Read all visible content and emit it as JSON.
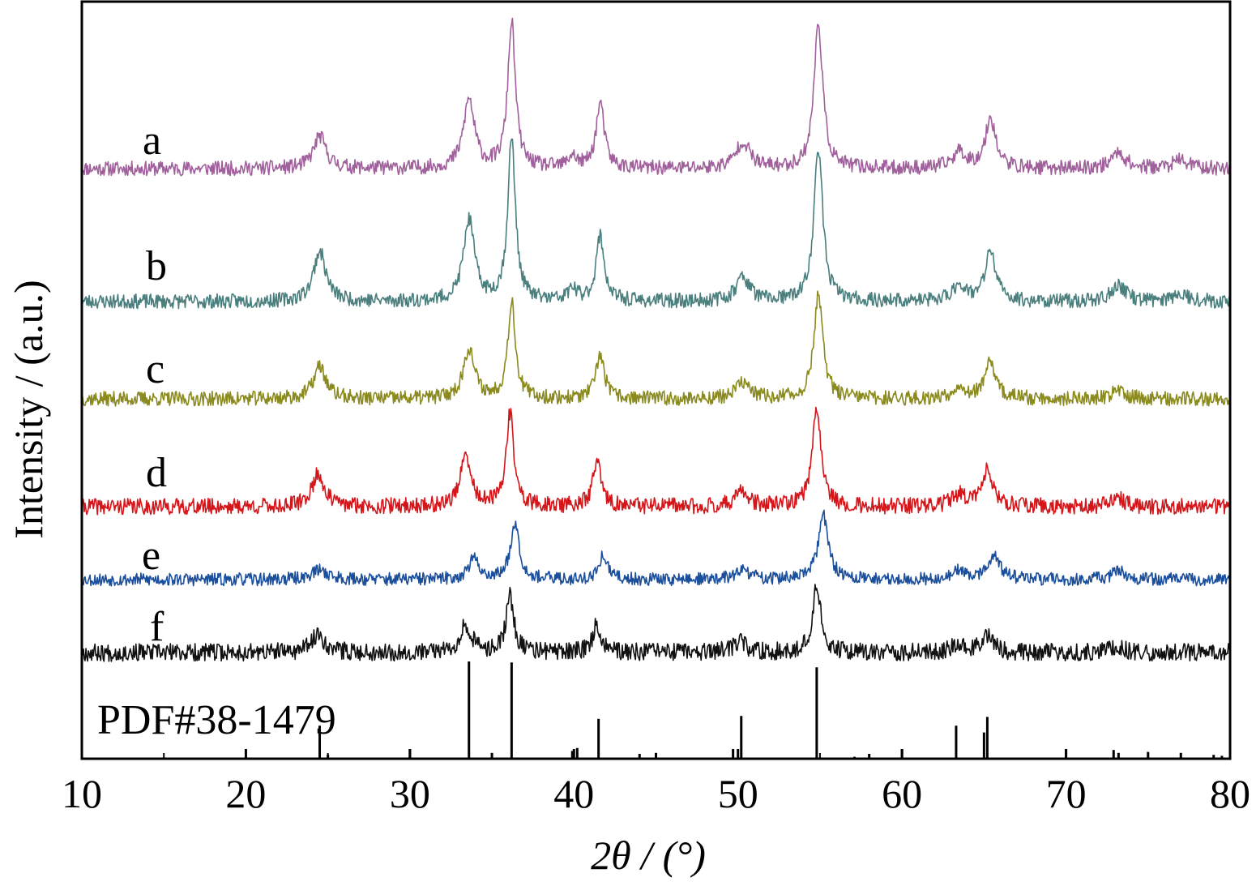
{
  "chart_data": {
    "type": "line",
    "xlabel": "2θ / (°)",
    "ylabel": "Intensity / (a.u.)",
    "xlim": [
      10,
      80
    ],
    "xticks": [
      10,
      20,
      30,
      40,
      50,
      60,
      70,
      80
    ],
    "grid": false,
    "reference": {
      "label": "PDF#38-1479",
      "lines": [
        {
          "x": 24.5,
          "rel": 0.34
        },
        {
          "x": 25.0,
          "rel": 0.04
        },
        {
          "x": 30.0,
          "rel": 0.1
        },
        {
          "x": 33.6,
          "rel": 1.0
        },
        {
          "x": 35.0,
          "rel": 0.06
        },
        {
          "x": 36.2,
          "rel": 0.99
        },
        {
          "x": 39.9,
          "rel": 0.08
        },
        {
          "x": 40.2,
          "rel": 0.11
        },
        {
          "x": 41.5,
          "rel": 0.41
        },
        {
          "x": 44.0,
          "rel": 0.05
        },
        {
          "x": 45.0,
          "rel": 0.06
        },
        {
          "x": 49.7,
          "rel": 0.1
        },
        {
          "x": 50.2,
          "rel": 0.44
        },
        {
          "x": 54.8,
          "rel": 0.94
        },
        {
          "x": 57.1,
          "rel": 0.02
        },
        {
          "x": 58.0,
          "rel": 0.05
        },
        {
          "x": 60.0,
          "rel": 0.1
        },
        {
          "x": 63.3,
          "rel": 0.34
        },
        {
          "x": 65.0,
          "rel": 0.27
        },
        {
          "x": 65.2,
          "rel": 0.43
        },
        {
          "x": 70.0,
          "rel": 0.1
        },
        {
          "x": 72.9,
          "rel": 0.09
        },
        {
          "x": 73.2,
          "rel": 0.06
        },
        {
          "x": 75.0,
          "rel": 0.07
        },
        {
          "x": 77.0,
          "rel": 0.06
        },
        {
          "x": 79.0,
          "rel": 0.04
        },
        {
          "x": 79.5,
          "rel": 0.03
        }
      ]
    },
    "series": [
      {
        "name": "a",
        "color": "#a0609c",
        "noise": 9,
        "noise_seed": 11,
        "peaks": [
          [
            24.5,
            40,
            0.45
          ],
          [
            33.6,
            85,
            0.4
          ],
          [
            36.2,
            180,
            0.28
          ],
          [
            39.9,
            15,
            0.3
          ],
          [
            41.6,
            80,
            0.3
          ],
          [
            50.3,
            33,
            0.5
          ],
          [
            54.9,
            180,
            0.32
          ],
          [
            63.5,
            20,
            0.5
          ],
          [
            65.4,
            62,
            0.38
          ],
          [
            73.2,
            20,
            0.5
          ],
          [
            77.0,
            10,
            0.6
          ]
        ]
      },
      {
        "name": "b",
        "color": "#4a7f7e",
        "noise": 9,
        "noise_seed": 23,
        "peaks": [
          [
            24.5,
            62,
            0.45
          ],
          [
            33.6,
            100,
            0.4
          ],
          [
            36.2,
            200,
            0.28
          ],
          [
            39.9,
            15,
            0.3
          ],
          [
            41.6,
            80,
            0.3
          ],
          [
            50.3,
            30,
            0.5
          ],
          [
            54.9,
            190,
            0.32
          ],
          [
            63.5,
            20,
            0.5
          ],
          [
            65.4,
            62,
            0.38
          ],
          [
            73.2,
            20,
            0.5
          ],
          [
            77.0,
            10,
            0.6
          ]
        ]
      },
      {
        "name": "c",
        "color": "#8a8a1e",
        "noise": 9,
        "noise_seed": 37,
        "peaks": [
          [
            24.5,
            40,
            0.45
          ],
          [
            33.6,
            62,
            0.4
          ],
          [
            36.2,
            120,
            0.28
          ],
          [
            41.6,
            55,
            0.3
          ],
          [
            50.3,
            20,
            0.5
          ],
          [
            54.9,
            130,
            0.32
          ],
          [
            63.5,
            15,
            0.5
          ],
          [
            65.4,
            45,
            0.38
          ],
          [
            73.2,
            10,
            0.5
          ]
        ]
      },
      {
        "name": "d",
        "color": "#d4161b",
        "noise": 10,
        "noise_seed": 41,
        "peaks": [
          [
            24.4,
            40,
            0.45
          ],
          [
            33.4,
            60,
            0.4
          ],
          [
            36.1,
            115,
            0.28
          ],
          [
            41.4,
            55,
            0.3
          ],
          [
            50.2,
            18,
            0.5
          ],
          [
            54.8,
            125,
            0.32
          ],
          [
            63.5,
            15,
            0.5
          ],
          [
            65.2,
            45,
            0.38
          ],
          [
            73.2,
            10,
            0.5
          ]
        ]
      },
      {
        "name": "e",
        "color": "#1b4f9c",
        "noise": 8,
        "noise_seed": 53,
        "peaks": [
          [
            24.5,
            12,
            0.6
          ],
          [
            33.9,
            25,
            0.4
          ],
          [
            36.4,
            70,
            0.32
          ],
          [
            41.8,
            30,
            0.3
          ],
          [
            50.3,
            12,
            0.5
          ],
          [
            55.2,
            80,
            0.36
          ],
          [
            63.5,
            10,
            0.5
          ],
          [
            65.6,
            30,
            0.45
          ],
          [
            73.2,
            10,
            0.5
          ]
        ]
      },
      {
        "name": "f",
        "color": "#111111",
        "noise": 11,
        "noise_seed": 67,
        "peaks": [
          [
            24.4,
            22,
            0.5
          ],
          [
            33.4,
            35,
            0.4
          ],
          [
            36.1,
            70,
            0.28
          ],
          [
            41.4,
            35,
            0.3
          ],
          [
            50.1,
            12,
            0.5
          ],
          [
            54.8,
            80,
            0.32
          ],
          [
            63.5,
            10,
            0.5
          ],
          [
            65.2,
            22,
            0.4
          ],
          [
            73.0,
            8,
            0.5
          ]
        ]
      }
    ]
  }
}
